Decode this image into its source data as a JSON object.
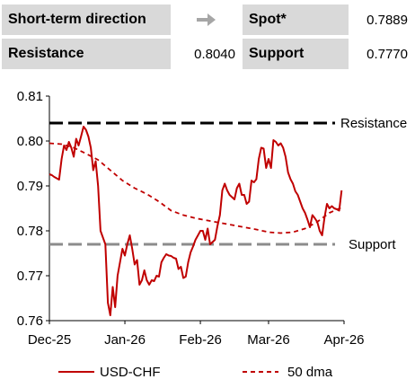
{
  "header": {
    "direction_label": "Short-term direction",
    "direction_icon": "arrow-right-icon",
    "spot_label": "Spot*",
    "spot_value": "0.7889",
    "resistance_label": "Resistance",
    "resistance_value": "0.8040",
    "support_label": "Support",
    "support_value": "0.7770"
  },
  "colors": {
    "series": "#c00000",
    "resistance_line": "#000000",
    "support_line": "#8c8c8c",
    "panel": "#d9d9d9"
  },
  "chart_data": {
    "type": "line",
    "x_tick_labels": [
      "Dec-25",
      "Jan-26",
      "Feb-26",
      "Mar-26",
      "Apr-26"
    ],
    "y_tick_labels": [
      "0.76",
      "0.77",
      "0.78",
      "0.79",
      "0.80",
      "0.81"
    ],
    "ylim": [
      0.76,
      0.81
    ],
    "xlim": [
      0,
      121
    ],
    "x_ticks": [
      0,
      31,
      62,
      90,
      121
    ],
    "legend_position": "bottom",
    "grid": false,
    "series": [
      {
        "name": "USD-CHF",
        "style": "solid",
        "values": [
          [
            0,
            0.7926
          ],
          [
            1,
            0.7924
          ],
          [
            2,
            0.792
          ],
          [
            3,
            0.7917
          ],
          [
            4,
            0.7914
          ],
          [
            5,
            0.796
          ],
          [
            6,
            0.799
          ],
          [
            7,
            0.798
          ],
          [
            8,
            0.7998
          ],
          [
            9,
            0.7985
          ],
          [
            10,
            0.7965
          ],
          [
            11,
            0.8005
          ],
          [
            12,
            0.799
          ],
          [
            13,
            0.801
          ],
          [
            14,
            0.8032
          ],
          [
            15,
            0.8025
          ],
          [
            16,
            0.801
          ],
          [
            17,
            0.7985
          ],
          [
            18,
            0.7935
          ],
          [
            19,
            0.7955
          ],
          [
            20,
            0.79
          ],
          [
            21,
            0.78
          ],
          [
            22,
            0.7785
          ],
          [
            23,
            0.777
          ],
          [
            24,
            0.764
          ],
          [
            25,
            0.7612
          ],
          [
            26,
            0.7675
          ],
          [
            27,
            0.763
          ],
          [
            28,
            0.77
          ],
          [
            29,
            0.773
          ],
          [
            30,
            0.776
          ],
          [
            31,
            0.7745
          ],
          [
            32,
            0.777
          ],
          [
            33,
            0.779
          ],
          [
            34,
            0.776
          ],
          [
            35,
            0.7725
          ],
          [
            36,
            0.7735
          ],
          [
            37,
            0.768
          ],
          [
            38,
            0.769
          ],
          [
            39,
            0.7712
          ],
          [
            40,
            0.769
          ],
          [
            41,
            0.768
          ],
          [
            42,
            0.769
          ],
          [
            43,
            0.7688
          ],
          [
            44,
            0.77
          ],
          [
            45,
            0.7698
          ],
          [
            46,
            0.773
          ],
          [
            47,
            0.774
          ],
          [
            48,
            0.7748
          ],
          [
            49,
            0.7745
          ],
          [
            50,
            0.7744
          ],
          [
            51,
            0.774
          ],
          [
            52,
            0.7738
          ],
          [
            53,
            0.7715
          ],
          [
            54,
            0.772
          ],
          [
            55,
            0.7695
          ],
          [
            56,
            0.7698
          ],
          [
            57,
            0.773
          ],
          [
            58,
            0.7752
          ],
          [
            59,
            0.7765
          ],
          [
            60,
            0.778
          ],
          [
            61,
            0.779
          ],
          [
            62,
            0.78
          ],
          [
            63,
            0.78
          ],
          [
            64,
            0.778
          ],
          [
            65,
            0.7805
          ],
          [
            66,
            0.777
          ],
          [
            67,
            0.7775
          ],
          [
            68,
            0.778
          ],
          [
            69,
            0.781
          ],
          [
            70,
            0.7835
          ],
          [
            71,
            0.789
          ],
          [
            72,
            0.7905
          ],
          [
            73,
            0.789
          ],
          [
            74,
            0.788
          ],
          [
            75,
            0.7875
          ],
          [
            76,
            0.787
          ],
          [
            77,
            0.7895
          ],
          [
            78,
            0.7905
          ],
          [
            79,
            0.788
          ],
          [
            80,
            0.788
          ],
          [
            81,
            0.786
          ],
          [
            82,
            0.7865
          ],
          [
            83,
            0.7912
          ],
          [
            84,
            0.7908
          ],
          [
            85,
            0.7915
          ],
          [
            86,
            0.796
          ],
          [
            87,
            0.7985
          ],
          [
            88,
            0.7983
          ],
          [
            89,
            0.794
          ],
          [
            90,
            0.796
          ],
          [
            91,
            0.794
          ],
          [
            92,
            0.8002
          ],
          [
            93,
            0.7998
          ],
          [
            94,
            0.799
          ],
          [
            95,
            0.7995
          ],
          [
            96,
            0.7985
          ],
          [
            97,
            0.7965
          ],
          [
            98,
            0.793
          ],
          [
            99,
            0.7915
          ],
          [
            100,
            0.7905
          ],
          [
            101,
            0.7888
          ],
          [
            102,
            0.788
          ],
          [
            103,
            0.7865
          ],
          [
            104,
            0.785
          ],
          [
            105,
            0.784
          ],
          [
            106,
            0.7825
          ],
          [
            107,
            0.7808
          ],
          [
            108,
            0.7835
          ],
          [
            109,
            0.7828
          ],
          [
            110,
            0.782
          ],
          [
            111,
            0.78
          ],
          [
            112,
            0.779
          ],
          [
            113,
            0.783
          ],
          [
            114,
            0.786
          ],
          [
            115,
            0.785
          ],
          [
            116,
            0.7855
          ],
          [
            117,
            0.785
          ],
          [
            118,
            0.7848
          ],
          [
            119,
            0.7845
          ],
          [
            120,
            0.789
          ]
        ]
      },
      {
        "name": "50 dma",
        "style": "dashed",
        "values": [
          [
            0,
            0.7995
          ],
          [
            5,
            0.7993
          ],
          [
            10,
            0.7985
          ],
          [
            15,
            0.7972
          ],
          [
            20,
            0.7958
          ],
          [
            25,
            0.7935
          ],
          [
            30,
            0.7912
          ],
          [
            35,
            0.7895
          ],
          [
            40,
            0.7882
          ],
          [
            45,
            0.7865
          ],
          [
            50,
            0.7845
          ],
          [
            55,
            0.7835
          ],
          [
            60,
            0.7828
          ],
          [
            65,
            0.7823
          ],
          [
            70,
            0.7818
          ],
          [
            75,
            0.7813
          ],
          [
            80,
            0.7808
          ],
          [
            85,
            0.7803
          ],
          [
            90,
            0.7797
          ],
          [
            95,
            0.7795
          ],
          [
            100,
            0.7797
          ],
          [
            105,
            0.7805
          ],
          [
            110,
            0.782
          ],
          [
            115,
            0.784
          ],
          [
            120,
            0.7852
          ]
        ]
      }
    ],
    "reference_lines": [
      {
        "label": "Resistance",
        "value": 0.804,
        "style": "long-dash"
      },
      {
        "label": "Support",
        "value": 0.777,
        "style": "long-dash"
      }
    ]
  }
}
